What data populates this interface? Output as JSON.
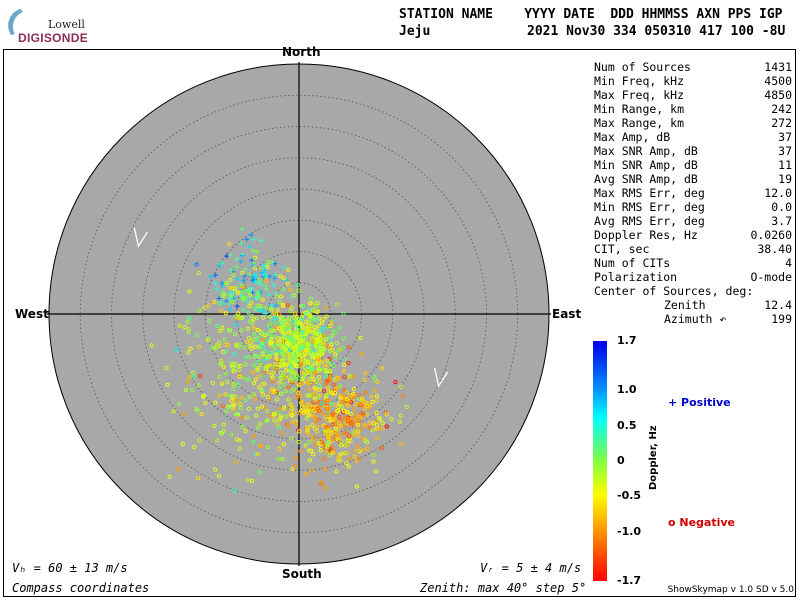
{
  "logo": {
    "line1": "Lowell",
    "line2": "DIGISONDE"
  },
  "header": {
    "row1": "STATION NAME    YYYY DATE  DDD HHMMSS AXN PPS IGP",
    "station": "Jeju",
    "row2_values": "2021 Nov30 334 050310 417 100 -8U"
  },
  "stats": [
    {
      "label": "Num of Sources",
      "value": "1431"
    },
    {
      "label": "Min Freq, kHz",
      "value": "4500"
    },
    {
      "label": "Max Freq, kHz",
      "value": "4850"
    },
    {
      "label": "Min Range, km",
      "value": "242"
    },
    {
      "label": "Max Range, km",
      "value": "272"
    },
    {
      "label": "Max Amp, dB",
      "value": "37"
    },
    {
      "label": "Max SNR Amp, dB",
      "value": "37"
    },
    {
      "label": "Min SNR Amp, dB",
      "value": "11"
    },
    {
      "label": "Avg SNR Amp, dB",
      "value": "19"
    },
    {
      "label": "Max RMS Err, deg",
      "value": "12.0"
    },
    {
      "label": "Min RMS Err, deg",
      "value": "0.0"
    },
    {
      "label": "Avg RMS Err, deg",
      "value": "3.7"
    },
    {
      "label": "Doppler Res, Hz",
      "value": "0.0260"
    },
    {
      "label": "CIT, sec",
      "value": "38.40"
    },
    {
      "label": "Num of CITs",
      "value": "4"
    },
    {
      "label": "Polarization",
      "value": "O-mode"
    },
    {
      "label": "Center of Sources, deg:",
      "value": ""
    },
    {
      "label": "Zenith",
      "value": "12.4",
      "sub": true
    },
    {
      "label": "Azimuth ↶",
      "value": "199",
      "sub": true
    }
  ],
  "compass": {
    "north": "North",
    "south": "South",
    "east": "East",
    "west": "West"
  },
  "bottom": {
    "vh": "Vₕ = 60 ± 13 m/s",
    "vz": "Vᵣ = 5 ± 4 m/s",
    "coords": "Compass coordinates",
    "zenith": "Zenith: max 40°  step 5°",
    "version": "ShowSkymap v 1.0   SD v 5.0"
  },
  "legend": {
    "positive": "+ Positive",
    "negative": "o Negative",
    "positive_color": "#0000cc",
    "negative_color": "#cc0000"
  },
  "colorbar": {
    "title": "Doppler, Hz",
    "ticks": [
      "1.7",
      "1.0",
      "0.5",
      "0",
      "-0.5",
      "-1.0",
      "-1.7"
    ],
    "tick_values": [
      1.7,
      1.0,
      0.5,
      0,
      -0.5,
      -1.0,
      -1.7
    ],
    "range": [
      -1.7,
      1.7
    ]
  },
  "chart_data": {
    "type": "scatter",
    "plot_kind": "polar skymap",
    "zenith_max_deg": 40,
    "zenith_step_deg": 5,
    "background": "#a8a8a8",
    "center_of_sources": {
      "zenith_deg": 12.4,
      "azimuth_deg": 199
    },
    "series": [
      {
        "name": "Positive",
        "marker": "+",
        "clusters": [
          {
            "zenith": 10,
            "azimuth": 305,
            "spread": 3.0,
            "count": 90,
            "doppler": 0.6
          }
        ]
      },
      {
        "name": "Negative",
        "marker": "o",
        "clusters": [
          {
            "zenith": 5,
            "azimuth": 180,
            "spread": 3.0,
            "count": 520,
            "doppler": -0.25
          },
          {
            "zenith": 17,
            "azimuth": 160,
            "spread": 4.0,
            "count": 420,
            "doppler": -0.8
          },
          {
            "zenith": 14,
            "azimuth": 210,
            "spread": 6.5,
            "count": 260,
            "doppler": -0.3
          },
          {
            "zenith": 8,
            "azimuth": 270,
            "spread": 4.0,
            "count": 140,
            "doppler": -0.15
          }
        ]
      }
    ],
    "velocity_arrows": [
      {
        "zenith": 28,
        "azimuth": 295
      },
      {
        "zenith": 25,
        "azimuth": 115
      }
    ]
  }
}
